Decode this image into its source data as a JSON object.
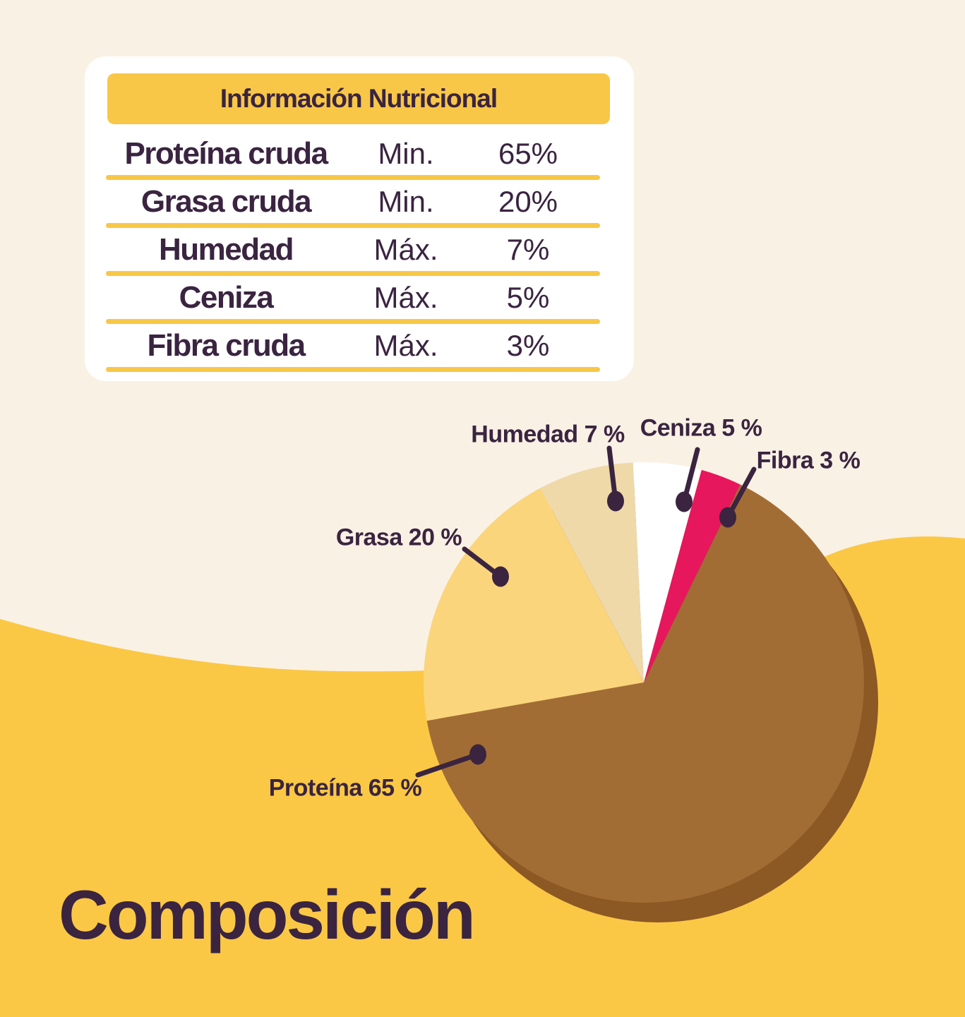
{
  "page_title": "Composición",
  "colors": {
    "background_cream": "#FAF1E5",
    "background_wave_yellow": "#FBC845",
    "card_white": "#FFFFFF",
    "header_yellow": "#F8C747",
    "separator_yellow": "#F8C747",
    "text_purple": "#3A2440",
    "callout_purple": "#3A2440"
  },
  "table": {
    "title": "Información Nutricional",
    "rows": [
      {
        "name": "Proteína cruda",
        "qualifier": "Min.",
        "value": "65%"
      },
      {
        "name": "Grasa cruda",
        "qualifier": "Min.",
        "value": "20%"
      },
      {
        "name": "Humedad",
        "qualifier": "Máx.",
        "value": "7%"
      },
      {
        "name": "Ceniza",
        "qualifier": "Máx.",
        "value": "5%"
      },
      {
        "name": "Fibra cruda",
        "qualifier": "Máx.",
        "value": "3%"
      }
    ]
  },
  "chart_data": {
    "type": "pie",
    "title": "Composición",
    "legend_position": "callouts",
    "start_angle_deg": 26,
    "shadow_color": "#8C5824",
    "slices": [
      {
        "label": "Proteína",
        "value": 65,
        "color": "#A26D34",
        "callout_label": "Proteína 65 %"
      },
      {
        "label": "Grasa",
        "value": 20,
        "color": "#FBD57C",
        "callout_label": "Grasa 20 %"
      },
      {
        "label": "Humedad",
        "value": 7,
        "color": "#EFD9A9",
        "callout_label": "Humedad 7 %"
      },
      {
        "label": "Ceniza",
        "value": 5,
        "color": "#FFFFFF",
        "callout_label": "Ceniza 5 %"
      },
      {
        "label": "Fibra",
        "value": 3,
        "color": "#E6175C",
        "callout_label": "Fibra 3 %"
      }
    ]
  }
}
